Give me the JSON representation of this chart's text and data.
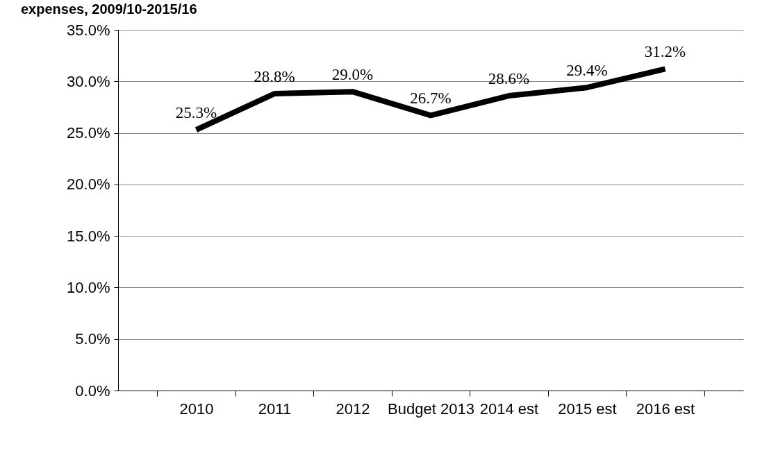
{
  "chart_data": {
    "type": "line",
    "title": "expenses, 2009/10-2015/16",
    "categories": [
      "2010",
      "2011",
      "2012",
      "Budget 2013",
      "2014 est",
      "2015 est",
      "2016 est"
    ],
    "series": [
      {
        "color": "#000000",
        "values": [
          25.3,
          28.8,
          29.0,
          26.7,
          28.6,
          29.4,
          31.2
        ]
      }
    ],
    "value_labels": [
      "25.3%",
      "28.8%",
      "29.0%",
      "26.7%",
      "28.6%",
      "29.4%",
      "31.2%"
    ],
    "ylim": [
      0,
      35
    ],
    "yticks": [
      {
        "value": 0,
        "label": "0.0%"
      },
      {
        "value": 5,
        "label": "5.0%"
      },
      {
        "value": 10,
        "label": "10.0%"
      },
      {
        "value": 15,
        "label": "15.0%"
      },
      {
        "value": 20,
        "label": "20.0%"
      },
      {
        "value": 25,
        "label": "25.0%"
      },
      {
        "value": 30,
        "label": "30.0%"
      },
      {
        "value": 35,
        "label": "35.0%"
      }
    ],
    "grid": "y",
    "legend": false,
    "marker": "none",
    "line_style": "solid"
  }
}
